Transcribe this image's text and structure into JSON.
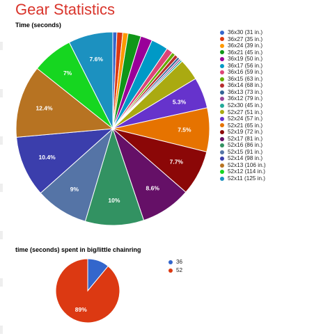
{
  "page": {
    "title": "Gear Statistics"
  },
  "chart_data": [
    {
      "type": "pie",
      "title": "Time (seconds)",
      "legend_position": "right",
      "slices": [
        {
          "label": "36x30 (31 in.)",
          "value": 0.7,
          "color": "#3366cc"
        },
        {
          "label": "36x27 (35 in.)",
          "value": 1.0,
          "color": "#dc3912"
        },
        {
          "label": "36x24 (39 in.)",
          "value": 0.9,
          "color": "#ff9900"
        },
        {
          "label": "36x21 (45 in.)",
          "value": 2.2,
          "color": "#109618"
        },
        {
          "label": "36x19 (50 in.)",
          "value": 2.0,
          "color": "#990099"
        },
        {
          "label": "36x17 (56 in.)",
          "value": 2.9,
          "color": "#0099c6"
        },
        {
          "label": "36x16 (59 in.)",
          "value": 1.1,
          "color": "#dd4477"
        },
        {
          "label": "36x15 (63 in.)",
          "value": 0.6,
          "color": "#66aa00"
        },
        {
          "label": "36x14 (68 in.)",
          "value": 0.6,
          "color": "#b82e2e"
        },
        {
          "label": "36x13 (73 in.)",
          "value": 0.4,
          "color": "#316395"
        },
        {
          "label": "36x12 (79 in.)",
          "value": 0.3,
          "color": "#994499"
        },
        {
          "label": "52x30 (45 in.)",
          "value": 0.3,
          "color": "#22aa99"
        },
        {
          "label": "52x27 (51 in.)",
          "value": 3.7,
          "color": "#aaaa11"
        },
        {
          "label": "52x24 (57 in.)",
          "value": 5.3,
          "color": "#6633cc",
          "data_label": "5.3%"
        },
        {
          "label": "52x21 (65 in.)",
          "value": 7.5,
          "color": "#e67300",
          "data_label": "7.5%"
        },
        {
          "label": "52x19 (72 in.)",
          "value": 7.7,
          "color": "#8b0707",
          "data_label": "7.7%"
        },
        {
          "label": "52x17 (81 in.)",
          "value": 8.6,
          "color": "#651067",
          "data_label": "8.6%"
        },
        {
          "label": "52x16 (86 in.)",
          "value": 10.0,
          "color": "#329262",
          "data_label": "10%"
        },
        {
          "label": "52x15 (91 in.)",
          "value": 9.0,
          "color": "#5574a6",
          "data_label": "9%"
        },
        {
          "label": "52x14 (98 in.)",
          "value": 10.4,
          "color": "#3b3eac",
          "data_label": "10.4%"
        },
        {
          "label": "52x13 (106 in.)",
          "value": 12.4,
          "color": "#b77322",
          "data_label": "12.4%"
        },
        {
          "label": "52x12 (114 in.)",
          "value": 7.0,
          "color": "#16d620",
          "data_label": "7%"
        },
        {
          "label": "52x11 (125 in.)",
          "value": 7.6,
          "color": "#1c91c0",
          "data_label": "7.6%"
        }
      ]
    },
    {
      "type": "pie",
      "title": "time (seconds) spent in big/little chainring",
      "legend_position": "right",
      "slices": [
        {
          "label": "36",
          "value": 11,
          "color": "#3366cc"
        },
        {
          "label": "52",
          "value": 89,
          "color": "#dc3912",
          "data_label": "89%"
        }
      ]
    }
  ]
}
